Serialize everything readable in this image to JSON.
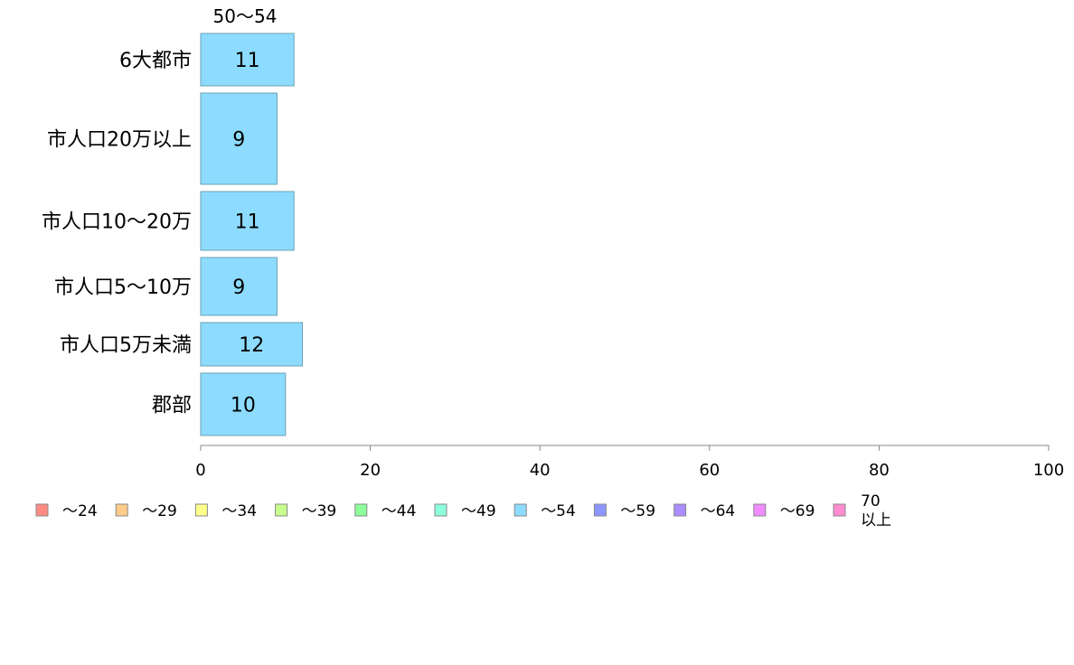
{
  "chart_data": {
    "type": "bar",
    "orientation": "horizontal",
    "series_header": "50〜54",
    "categories": [
      "6大都市",
      "市人口20万以上",
      "市人口10〜20万",
      "市人口5〜10万",
      "市人口5万未満",
      "郡部"
    ],
    "values": [
      11,
      9,
      11,
      9,
      12,
      10
    ],
    "value_labels": [
      "11",
      "9",
      "11",
      "9",
      "12",
      "10"
    ],
    "bar_color": "#8ddcff",
    "bar_stroke": "#6aa0b4",
    "axis_color": "#888888",
    "xlim": [
      0,
      100
    ],
    "xticks": [
      0,
      20,
      40,
      60,
      80,
      100
    ],
    "xtick_labels": [
      "0",
      "20",
      "40",
      "60",
      "80",
      "100"
    ],
    "grid": false,
    "legend_placement": "bottom",
    "legend": [
      {
        "label": "〜24",
        "color": "#ff8c82"
      },
      {
        "label": "〜29",
        "color": "#ffcc8c"
      },
      {
        "label": "〜34",
        "color": "#ffff8c"
      },
      {
        "label": "〜39",
        "color": "#c8ff8c"
      },
      {
        "label": "〜44",
        "color": "#8cff9c"
      },
      {
        "label": "〜49",
        "color": "#8cffdc"
      },
      {
        "label": "〜54",
        "color": "#8ddcff"
      },
      {
        "label": "〜59",
        "color": "#8c96ff"
      },
      {
        "label": "〜64",
        "color": "#ac8cff"
      },
      {
        "label": "〜69",
        "color": "#f08cff"
      },
      {
        "label": "70以上",
        "label_lines": [
          "70",
          "以上"
        ],
        "color": "#ff8cd0"
      }
    ]
  }
}
